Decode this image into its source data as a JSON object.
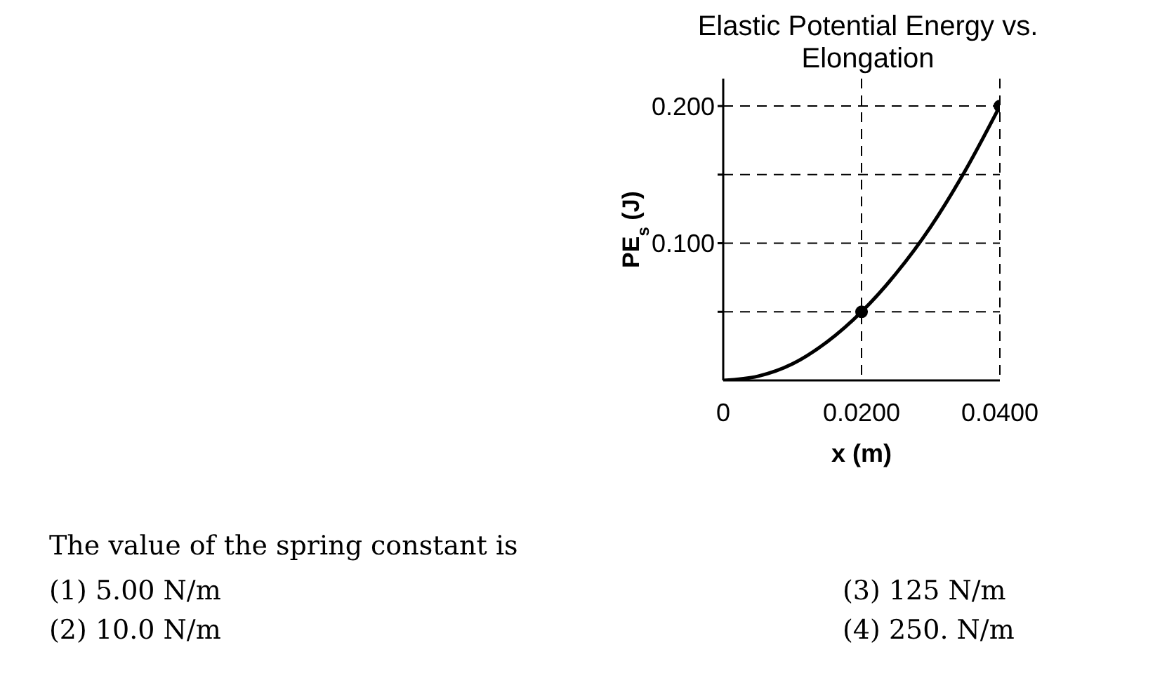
{
  "chart_data": {
    "type": "line",
    "title": "Elastic Potential Energy vs. Elongation",
    "xlabel": "x (m)",
    "ylabel": "PE$_{s}$ (J)",
    "series": [
      {
        "color": "#000000",
        "marker": "none",
        "x": [
          0,
          0.005,
          0.01,
          0.015,
          0.02,
          0.025,
          0.03,
          0.035,
          0.04
        ],
        "values": [
          0,
          0.003,
          0.012,
          0.028,
          0.05,
          0.078,
          0.112,
          0.153,
          0.2
        ]
      },
      {
        "type": "scatter",
        "color": "#000000",
        "marker": "circle",
        "x": [
          0.02,
          0.04
        ],
        "values": [
          0.05,
          0.2
        ]
      }
    ],
    "xlim": [
      0,
      0.04
    ],
    "xticks": [
      0,
      {
        "value": 0.02,
        "label": "0.0200"
      },
      {
        "value": 0.04,
        "label": "0.0400"
      }
    ],
    "ylim": [
      0,
      0.22
    ],
    "yticks": [
      {
        "value": 0.05,
        "label": null
      },
      {
        "value": 0.1,
        "label": "0.100"
      },
      {
        "value": 0.15,
        "label": null
      },
      {
        "value": 0.2,
        "label": "0.200"
      }
    ],
    "grid": true,
    "line_style": "solid",
    "annotations": [
      "The value of the spring constant is",
      "(1) 5.00 N/m",
      "(2) 10.0 N/m",
      "(3) 125 N/m",
      "(4) 250. N/m"
    ]
  }
}
